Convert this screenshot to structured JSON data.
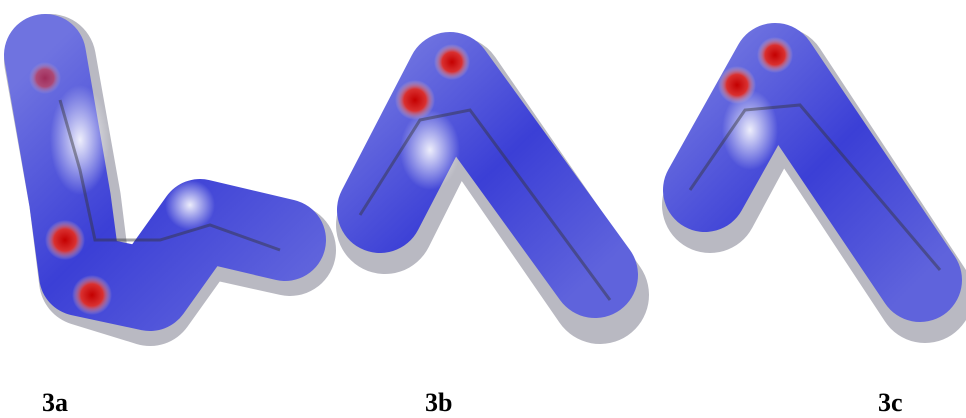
{
  "panels": [
    {
      "label": "3a"
    },
    {
      "label": "3b"
    },
    {
      "label": "3c"
    }
  ]
}
